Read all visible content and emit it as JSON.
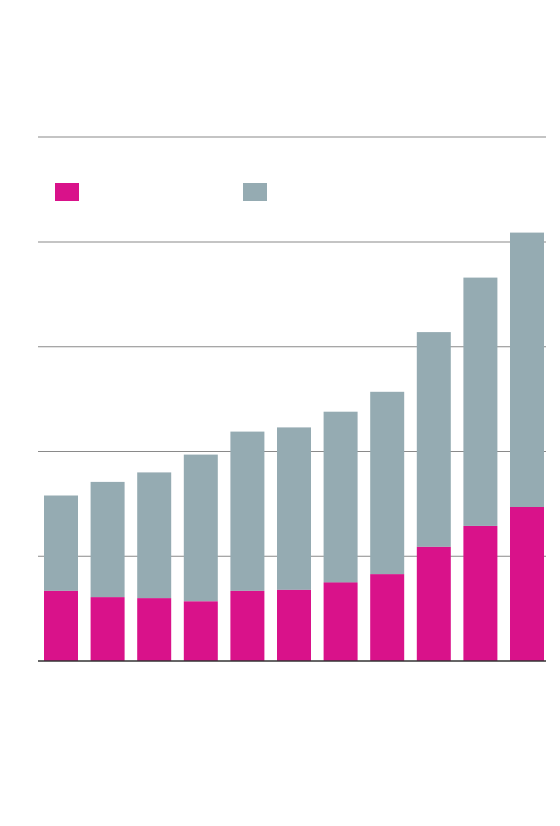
{
  "chart_data": {
    "type": "bar",
    "stacked": true,
    "title": "",
    "xlabel": "",
    "ylabel": "",
    "categories": [
      "",
      "",
      "",
      "",
      "",
      "",
      "",
      "",
      "",
      "",
      ""
    ],
    "series": [
      {
        "name": "",
        "color": "#d9128a",
        "values": [
          67,
          61,
          60,
          57,
          67,
          68,
          75,
          83,
          109,
          129,
          147
        ]
      },
      {
        "name": "",
        "color": "#95abb2",
        "values": [
          91,
          110,
          120,
          140,
          152,
          155,
          163,
          174,
          205,
          237,
          262
        ]
      }
    ],
    "ylim": [
      0,
      400
    ],
    "yticks": [
      0,
      100,
      200,
      300,
      400
    ],
    "grid": true,
    "legend": "top-left"
  }
}
